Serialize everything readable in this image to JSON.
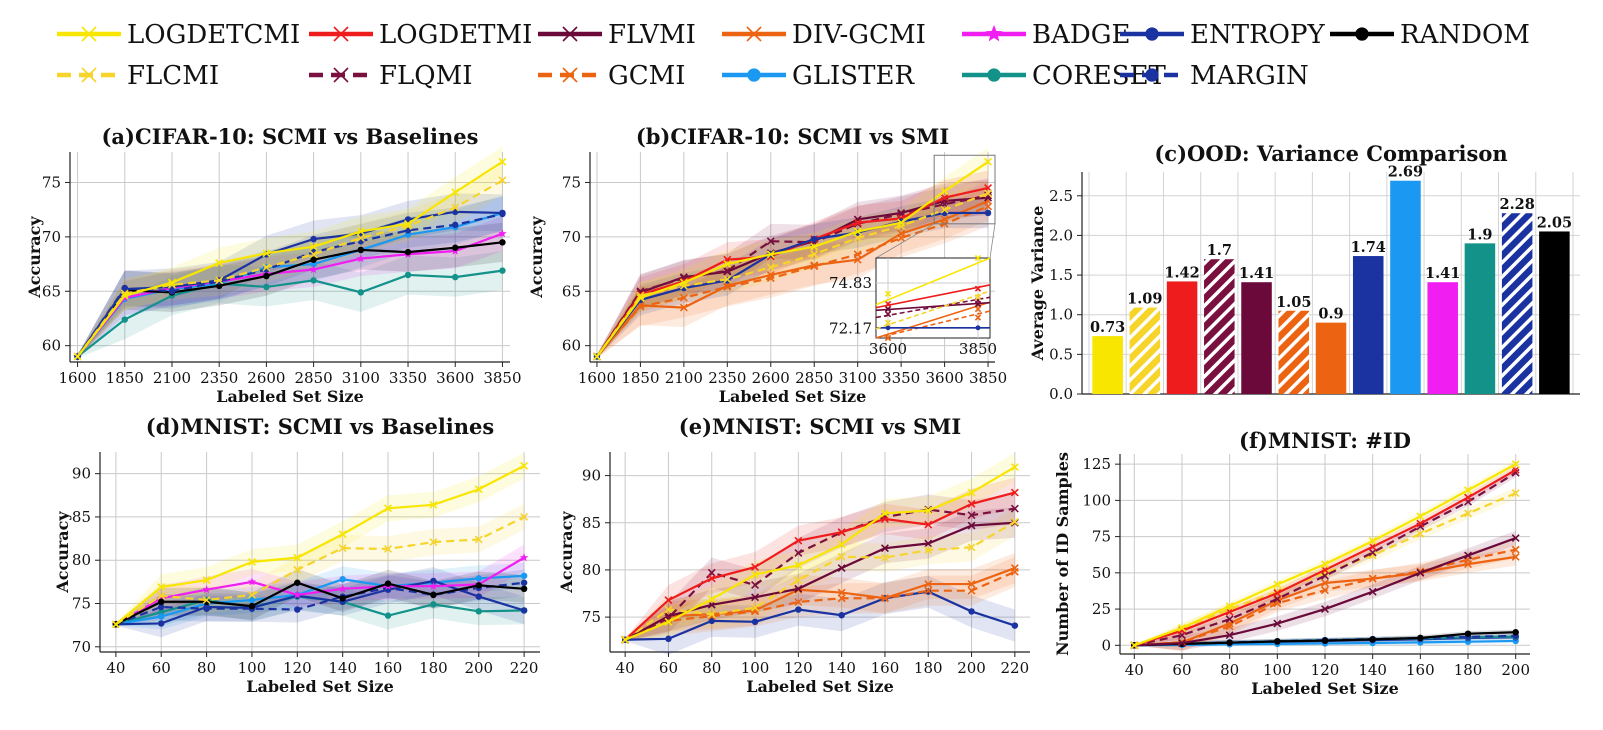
{
  "series_styles": {
    "LOGDETCMI": {
      "color": "#f8e600",
      "dash": false,
      "marker": "x"
    },
    "LOGDETMI": {
      "color": "#ee1c1c",
      "dash": false,
      "marker": "x"
    },
    "FLVMI": {
      "color": "#6b0a3a",
      "dash": false,
      "marker": "x"
    },
    "DIV-GCMI": {
      "color": "#ec6412",
      "dash": false,
      "marker": "x"
    },
    "BADGE": {
      "color": "#f01ef0",
      "dash": false,
      "marker": "star"
    },
    "ENTROPY": {
      "color": "#1a33a0",
      "dash": false,
      "marker": "dot"
    },
    "RANDOM": {
      "color": "#000000",
      "dash": false,
      "marker": "dot"
    },
    "FLCMI": {
      "color": "#f6d42a",
      "dash": true,
      "marker": "x"
    },
    "FLQMI": {
      "color": "#7a1040",
      "dash": true,
      "marker": "x"
    },
    "GCMI": {
      "color": "#ec6412",
      "dash": true,
      "marker": "x"
    },
    "GLISTER": {
      "color": "#1a98f2",
      "dash": false,
      "marker": "dot"
    },
    "CORESET": {
      "color": "#13928a",
      "dash": false,
      "marker": "dot"
    },
    "MARGIN": {
      "color": "#1a33a0",
      "dash": true,
      "marker": "dot"
    }
  },
  "legend": {
    "row1": [
      "LOGDETCMI",
      "LOGDETMI",
      "FLVMI",
      "DIV-GCMI",
      "BADGE",
      "ENTROPY",
      "RANDOM"
    ],
    "row2": [
      "FLCMI",
      "FLQMI",
      "GCMI",
      "GLISTER",
      "CORESET",
      "MARGIN"
    ]
  },
  "chart_data": [
    {
      "id": "a",
      "type": "line",
      "title": "(a)CIFAR-10: SCMI vs Baselines",
      "xlabel": "Labeled Set Size",
      "ylabel": "Accuracy",
      "x": [
        1600,
        1850,
        2100,
        2350,
        2600,
        2850,
        3100,
        3350,
        3600,
        3850
      ],
      "xlim": [
        1560,
        3890
      ],
      "ylim": [
        58.5,
        77.8
      ],
      "yticks": [
        60,
        65,
        70,
        75
      ],
      "grid": true,
      "series": [
        {
          "name": "CORESET",
          "values": [
            59,
            62.4,
            64.6,
            65.7,
            65.4,
            66.0,
            64.9,
            66.5,
            66.3,
            66.9
          ],
          "band": 1.8
        },
        {
          "name": "GLISTER",
          "values": [
            59,
            64.3,
            65.2,
            65.7,
            67.2,
            67.5,
            68.8,
            70.2,
            70.9,
            72.2
          ],
          "band": 1.6
        },
        {
          "name": "BADGE",
          "values": [
            59,
            64.4,
            65.3,
            65.9,
            66.6,
            67.0,
            68.0,
            68.4,
            68.7,
            70.3
          ],
          "band": 1.6
        },
        {
          "name": "RANDOM",
          "values": [
            59,
            65.1,
            64.9,
            65.5,
            66.4,
            67.9,
            68.8,
            68.6,
            69.0,
            69.5
          ],
          "band": 1.8
        },
        {
          "name": "MARGIN",
          "values": [
            59,
            65.3,
            65.0,
            65.9,
            67.0,
            68.6,
            69.6,
            70.6,
            71.1,
            72.1
          ],
          "band": 1.6
        },
        {
          "name": "ENTROPY",
          "values": [
            59,
            65.2,
            65.4,
            66.0,
            68.4,
            69.8,
            70.3,
            71.6,
            72.3,
            72.2
          ],
          "band": 1.7
        },
        {
          "name": "FLCMI",
          "values": [
            59,
            64.8,
            65.6,
            66.0,
            67.2,
            68.4,
            69.9,
            71.0,
            72.7,
            75.2
          ],
          "band": 1.4
        },
        {
          "name": "LOGDETCMI",
          "values": [
            59,
            64.6,
            65.8,
            67.6,
            68.5,
            69.1,
            70.5,
            71.2,
            74.1,
            76.9
          ],
          "band": 1.4
        }
      ]
    },
    {
      "id": "b",
      "type": "line",
      "title": "(b)CIFAR-10: SCMI vs SMI",
      "xlabel": "Labeled Set Size",
      "ylabel": "Accuracy",
      "x": [
        1600,
        1850,
        2100,
        2350,
        2600,
        2850,
        3100,
        3350,
        3600,
        3850
      ],
      "xlim": [
        1560,
        3890
      ],
      "ylim": [
        58.5,
        77.8
      ],
      "yticks": [
        60,
        65,
        70,
        75
      ],
      "grid": true,
      "inset_labels": [
        "74.83",
        "72.17",
        "3600",
        "3850"
      ],
      "series": [
        {
          "name": "GCMI",
          "values": [
            59,
            63.6,
            64.4,
            65.4,
            66.2,
            67.3,
            68.4,
            69.9,
            71.2,
            72.8
          ],
          "band": 1.8
        },
        {
          "name": "DIV-GCMI",
          "values": [
            59,
            63.7,
            63.5,
            65.5,
            66.5,
            67.4,
            67.9,
            70.3,
            71.6,
            73.3
          ],
          "band": 1.8
        },
        {
          "name": "FLVMI",
          "values": [
            59,
            64.9,
            66.3,
            66.8,
            68.5,
            69.6,
            71.6,
            72.2,
            73.3,
            73.6
          ],
          "band": 1.6
        },
        {
          "name": "FLQMI",
          "values": [
            59,
            65.0,
            66.2,
            66.9,
            69.6,
            69.5,
            71.2,
            72.1,
            73.0,
            73.8
          ],
          "band": 1.6
        },
        {
          "name": "LOGDETMI",
          "values": [
            59,
            64.7,
            65.9,
            67.9,
            68.2,
            69.8,
            71.3,
            71.7,
            73.6,
            74.5
          ],
          "band": 1.6
        },
        {
          "name": "ENTROPY",
          "values": [
            59,
            64.2,
            65.3,
            66.0,
            68.4,
            69.8,
            70.4,
            71.4,
            72.2,
            72.2
          ],
          "band": 1.4
        },
        {
          "name": "FLCMI",
          "values": [
            59,
            64.6,
            65.5,
            66.1,
            67.2,
            68.4,
            69.9,
            71.0,
            72.5,
            74.0
          ],
          "band": 1.3
        },
        {
          "name": "LOGDETCMI",
          "values": [
            59,
            64.4,
            65.8,
            67.5,
            68.4,
            69.1,
            70.5,
            71.3,
            74.2,
            76.9
          ],
          "band": 1.3
        }
      ]
    },
    {
      "id": "c",
      "type": "bar",
      "title": "(c)OOD: Variance Comparison",
      "xlabel": "",
      "ylabel": "Average Variance",
      "ylim": [
        0,
        2.8
      ],
      "yticks": [
        0.0,
        0.5,
        1.0,
        1.5,
        2.0,
        2.5
      ],
      "grid": true,
      "bars": [
        {
          "name": "LOGDETCMI",
          "value": 0.73,
          "label": "0.73"
        },
        {
          "name": "FLCMI",
          "value": 1.09,
          "label": "1.09"
        },
        {
          "name": "LOGDETMI",
          "value": 1.42,
          "label": "1.42"
        },
        {
          "name": "FLQMI",
          "value": 1.7,
          "label": "1.7"
        },
        {
          "name": "FLVMI",
          "value": 1.41,
          "label": "1.41"
        },
        {
          "name": "GCMI",
          "value": 1.05,
          "label": "1.05"
        },
        {
          "name": "DIV-GCMI",
          "value": 0.9,
          "label": "0.9"
        },
        {
          "name": "ENTROPY",
          "value": 1.74,
          "label": "1.74"
        },
        {
          "name": "GLISTER",
          "value": 2.69,
          "label": "2.69"
        },
        {
          "name": "BADGE",
          "value": 1.41,
          "label": "1.41"
        },
        {
          "name": "CORESET",
          "value": 1.9,
          "label": "1.9"
        },
        {
          "name": "MARGIN",
          "value": 2.28,
          "label": "2.28"
        },
        {
          "name": "RANDOM",
          "value": 2.05,
          "label": "2.05"
        }
      ]
    },
    {
      "id": "d",
      "type": "line",
      "title": "(d)MNIST: SCMI vs Baselines",
      "xlabel": "Labeled Set Size",
      "ylabel": "Accuracy",
      "x": [
        40,
        60,
        80,
        100,
        120,
        140,
        160,
        180,
        200,
        220
      ],
      "xlim": [
        33,
        227
      ],
      "ylim": [
        69.4,
        92.5
      ],
      "yticks": [
        70,
        75,
        80,
        85,
        90
      ],
      "grid": true,
      "series": [
        {
          "name": "CORESET",
          "values": [
            72.6,
            74.0,
            75.4,
            74.6,
            75.8,
            75.2,
            73.6,
            74.9,
            74.1,
            74.2
          ],
          "band": 1.6
        },
        {
          "name": "GLISTER",
          "values": [
            72.6,
            73.5,
            75.0,
            75.4,
            76.0,
            77.8,
            77.0,
            77.4,
            77.9,
            78.2
          ],
          "band": 1.5
        },
        {
          "name": "MARGIN",
          "values": [
            72.6,
            74.6,
            74.4,
            74.4,
            74.3,
            75.8,
            76.8,
            76.0,
            76.8,
            77.4
          ],
          "band": 1.5
        },
        {
          "name": "ENTROPY",
          "values": [
            72.6,
            72.7,
            74.6,
            74.5,
            75.9,
            75.2,
            76.6,
            77.6,
            75.8,
            74.2
          ],
          "band": 1.6
        },
        {
          "name": "BADGE",
          "values": [
            72.6,
            75.6,
            76.6,
            77.5,
            76.0,
            76.7,
            77.0,
            77.0,
            77.2,
            80.3
          ],
          "band": 1.5
        },
        {
          "name": "RANDOM",
          "values": [
            72.6,
            75.2,
            75.2,
            74.7,
            77.4,
            75.6,
            77.3,
            76.0,
            77.1,
            76.7
          ],
          "band": 1.6
        },
        {
          "name": "FLCMI",
          "values": [
            72.6,
            75.9,
            75.4,
            76.0,
            78.9,
            81.4,
            81.3,
            82.1,
            82.4,
            85.0
          ],
          "band": 1.5
        },
        {
          "name": "LOGDETCMI",
          "values": [
            72.6,
            76.9,
            77.7,
            79.8,
            80.3,
            83.0,
            86.0,
            86.4,
            88.2,
            90.9
          ],
          "band": 1.5
        }
      ]
    },
    {
      "id": "e",
      "type": "line",
      "title": "(e)MNIST: SCMI vs SMI",
      "xlabel": "Labeled Set Size",
      "ylabel": "Accuracy",
      "x": [
        40,
        60,
        80,
        100,
        120,
        140,
        160,
        180,
        200,
        220
      ],
      "xlim": [
        33,
        227
      ],
      "ylim": [
        71.3,
        92.5
      ],
      "yticks": [
        75,
        80,
        85,
        90
      ],
      "grid": true,
      "series": [
        {
          "name": "ENTROPY",
          "values": [
            72.6,
            72.7,
            74.6,
            74.5,
            75.8,
            75.2,
            77.0,
            77.7,
            75.6,
            74.1
          ],
          "band": 1.7
        },
        {
          "name": "GCMI",
          "values": [
            72.6,
            74.6,
            75.1,
            75.6,
            76.6,
            77.0,
            77.0,
            77.8,
            77.8,
            79.8
          ],
          "band": 1.6
        },
        {
          "name": "DIV-GCMI",
          "values": [
            72.6,
            75.1,
            75.3,
            75.7,
            77.9,
            77.6,
            77.0,
            78.5,
            78.5,
            80.2
          ],
          "band": 1.6
        },
        {
          "name": "FLVMI",
          "values": [
            72.6,
            75.1,
            76.3,
            77.1,
            78.0,
            80.2,
            82.3,
            82.8,
            84.7,
            85.0
          ],
          "band": 1.6
        },
        {
          "name": "FLCMI",
          "values": [
            72.6,
            75.8,
            75.3,
            76.0,
            78.9,
            81.4,
            81.3,
            82.1,
            82.4,
            85.1
          ],
          "band": 1.5
        },
        {
          "name": "FLQMI",
          "values": [
            72.6,
            74.9,
            79.7,
            78.4,
            81.8,
            84.0,
            85.6,
            86.4,
            85.8,
            86.5
          ],
          "band": 1.6
        },
        {
          "name": "LOGDETMI",
          "values": [
            72.6,
            76.8,
            79.1,
            80.3,
            83.1,
            84.0,
            85.4,
            84.8,
            87.0,
            88.2
          ],
          "band": 1.6
        },
        {
          "name": "LOGDETCMI",
          "values": [
            72.6,
            74.5,
            76.9,
            79.5,
            80.5,
            82.7,
            86.0,
            86.3,
            88.2,
            90.9
          ],
          "band": 1.5
        }
      ]
    },
    {
      "id": "f",
      "type": "line",
      "title": "(f)MNIST: #ID",
      "xlabel": "Labeled Set Size",
      "ylabel": "Number of ID Samples",
      "x": [
        40,
        60,
        80,
        100,
        120,
        140,
        160,
        180,
        200
      ],
      "xlim": [
        34,
        206
      ],
      "ylim": [
        -6,
        132
      ],
      "yticks": [
        0,
        25,
        50,
        75,
        100,
        125
      ],
      "grid": true,
      "series": [
        {
          "name": "GLISTER",
          "values": [
            0,
            0.3,
            0.7,
            1.0,
            1.3,
            1.6,
            2.0,
            2.5,
            3.0
          ],
          "band": 1.5
        },
        {
          "name": "ENTROPY",
          "values": [
            0,
            1,
            1.8,
            2.5,
            3.0,
            3.6,
            4.2,
            5.0,
            5.5
          ],
          "band": 1.5
        },
        {
          "name": "CORESET",
          "values": [
            0,
            1,
            1.9,
            2.8,
            3.5,
            4.2,
            4.8,
            5.5,
            6.0
          ],
          "band": 1.5
        },
        {
          "name": "MARGIN",
          "values": [
            0,
            1,
            2.0,
            2.8,
            3.6,
            4.3,
            5.0,
            5.8,
            6.5
          ],
          "band": 1.5
        },
        {
          "name": "RANDOM",
          "values": [
            0,
            1,
            1.8,
            2.7,
            3.2,
            4.1,
            5.1,
            8.0,
            9.0
          ],
          "band": 1.8
        },
        {
          "name": "DIV-GCMI",
          "values": [
            0,
            2,
            15,
            31,
            43,
            46,
            50,
            56,
            61
          ],
          "band": 6
        },
        {
          "name": "GCMI",
          "values": [
            0,
            2.2,
            13,
            29,
            38,
            46,
            51,
            59,
            66
          ],
          "band": 6
        },
        {
          "name": "FLVMI",
          "values": [
            0,
            1.5,
            7,
            15,
            25,
            37,
            50,
            62,
            74
          ],
          "band": 5
        },
        {
          "name": "FLCMI",
          "values": [
            0,
            11,
            25,
            37,
            50,
            62,
            77,
            91,
            105
          ],
          "band": 4
        },
        {
          "name": "FLQMI",
          "values": [
            0,
            7,
            18,
            32,
            48,
            64,
            82,
            99,
            119
          ],
          "band": 3
        },
        {
          "name": "LOGDETMI",
          "values": [
            0,
            10,
            23,
            36,
            52,
            68,
            84,
            102,
            121
          ],
          "band": 3
        },
        {
          "name": "LOGDETCMI",
          "values": [
            0,
            12,
            27,
            42,
            56,
            72,
            89,
            107,
            125
          ],
          "band": 3
        }
      ]
    }
  ]
}
